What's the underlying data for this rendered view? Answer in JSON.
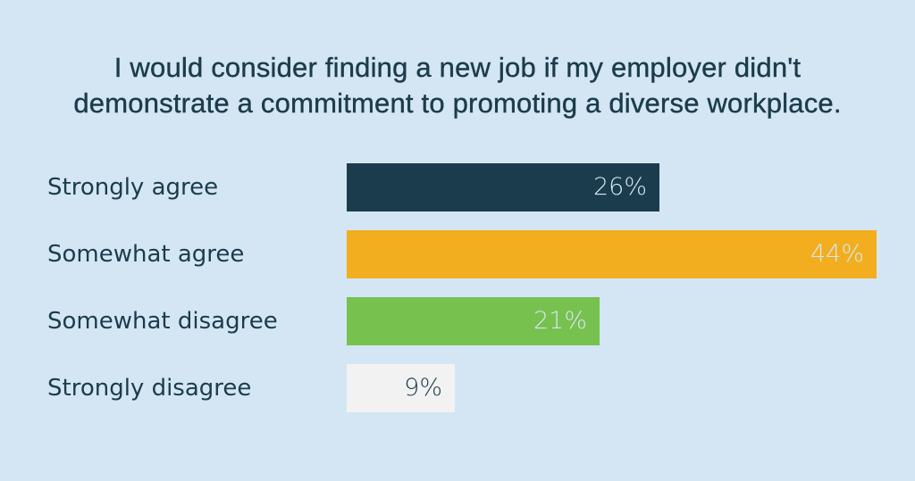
{
  "chart_data": {
    "type": "bar",
    "orientation": "horizontal",
    "title": "I would consider finding a new job if my employer didn't demonstrate a commitment to promoting a diverse workplace.",
    "title_lines": [
      "I would consider finding a new job if my employer didn't",
      "demonstrate a commitment to promoting a diverse workplace."
    ],
    "categories": [
      "Strongly agree",
      "Somewhat agree",
      "Somewhat disagree",
      "Strongly disagree"
    ],
    "values": [
      26,
      44,
      21,
      9
    ],
    "value_labels": [
      "26%",
      "44%",
      "21%",
      "9%"
    ],
    "unit": "%",
    "colors": [
      "#1b3c4c",
      "#f2ae1f",
      "#77c14f",
      "#f2f2f2"
    ],
    "label_colors": [
      "#d4e6f3",
      "#d4e6f3",
      "#d4e6f3",
      "#1b3c4c"
    ],
    "xlabel": "",
    "ylabel": "",
    "grid": false,
    "legend": null
  },
  "theme": {
    "background": "#d4e6f3",
    "text": "#1b3c4c"
  }
}
